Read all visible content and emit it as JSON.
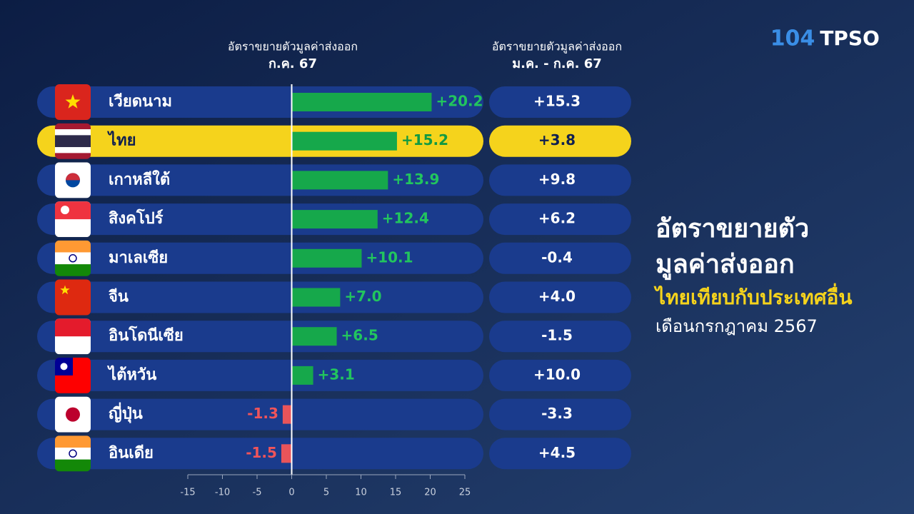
{
  "logos": [
    "104",
    "TPSO"
  ],
  "chart_data": {
    "type": "bar",
    "orientation": "horizontal",
    "header_left": [
      "อัตราขยายตัวมูลค่าส่งออก",
      "ก.ค. 67"
    ],
    "header_right": [
      "อัตราขยายตัวมูลค่าส่งออก",
      "ม.ค. - ก.ค. 67"
    ],
    "title_lines": [
      "อัตราขยายตัว",
      "มูลค่าส่งออก"
    ],
    "subtitle": "ไทยเทียบกับประเทศอื่น",
    "period": "เดือนกรกฎาคม 2567",
    "categories": [
      "เวียดนาม",
      "ไทย",
      "เกาหลีใต้",
      "สิงคโปร์",
      "มาเลเซีย",
      "จีน",
      "อินโดนีเซีย",
      "ไต้หวัน",
      "ญี่ปุ่น",
      "อินเดีย"
    ],
    "values": [
      20.2,
      15.2,
      13.9,
      12.4,
      10.1,
      7.0,
      6.5,
      3.1,
      -1.3,
      -1.5
    ],
    "value_labels": [
      "+20.2",
      "+15.2",
      "+13.9",
      "+12.4",
      "+10.1",
      "+7.0",
      "+6.5",
      "+3.1",
      "-1.3",
      "-1.5"
    ],
    "ytd_values": [
      15.3,
      3.8,
      9.8,
      6.2,
      -0.4,
      4.0,
      -1.5,
      10.0,
      -3.3,
      4.5
    ],
    "ytd_labels": [
      "+15.3",
      "+3.8",
      "+9.8",
      "+6.2",
      "-0.4",
      "+4.0",
      "-1.5",
      "+10.0",
      "-3.3",
      "+4.5"
    ],
    "highlight_index": 1,
    "positive_color": "#16a84b",
    "negative_color": "#e8545a",
    "xlim": [
      -15,
      25
    ],
    "xticks": [
      -15,
      -10,
      -5,
      0,
      5,
      10,
      15,
      20,
      25
    ]
  }
}
